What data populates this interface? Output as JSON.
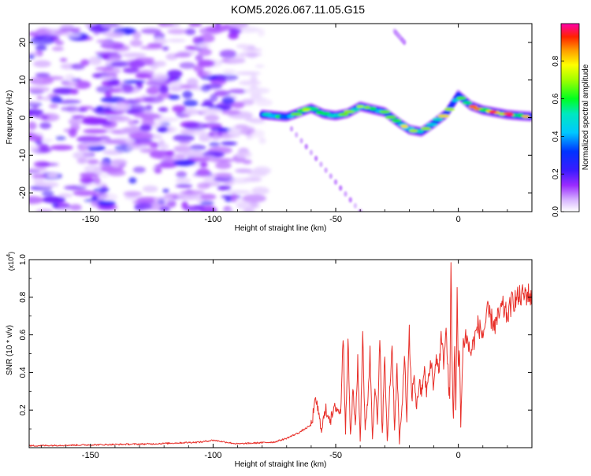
{
  "figure_title": "KOM5.2026.067.11.05.G15",
  "chart_data": [
    {
      "type": "heatmap",
      "title": "KOM5.2026.067.11.05.G15",
      "xlabel": "Height of straight line (km)",
      "ylabel": "Frequency (Hz)",
      "xlim": [
        -175,
        30
      ],
      "ylim": [
        -25,
        25
      ],
      "x_ticks": [
        -150,
        -100,
        -50,
        0
      ],
      "y_ticks": [
        -20,
        -10,
        0,
        10,
        20
      ],
      "colorbar": {
        "label": "Normalized spectral amplitude",
        "range": [
          0,
          1
        ],
        "ticks": [
          0.0,
          0.2,
          0.4,
          0.6,
          0.8
        ],
        "tick_labels": [
          "0.0",
          "0.2",
          "0.4",
          "0.6",
          "0.8"
        ]
      },
      "ridge_centerline": {
        "x": [
          -80,
          -70,
          -60,
          -55,
          -50,
          -45,
          -40,
          -35,
          -30,
          -25,
          -20,
          -15,
          -10,
          -5,
          -2,
          0,
          5,
          10,
          15,
          20,
          25,
          30
        ],
        "y": [
          0.8,
          0.2,
          2.5,
          1.0,
          0.5,
          1.2,
          3.0,
          2.2,
          1.5,
          -1.0,
          -3.2,
          -3.8,
          -1.5,
          1.0,
          4.0,
          6.0,
          3.2,
          2.0,
          1.4,
          0.8,
          0.5,
          0.3
        ]
      },
      "secondary_lines": [
        {
          "x": [
            -68,
            -40
          ],
          "y": [
            -3,
            -25
          ]
        },
        {
          "x": [
            -26,
            -22
          ],
          "y": [
            23,
            20
          ]
        }
      ]
    },
    {
      "type": "line",
      "xlabel": "Height of straight line (km)",
      "ylabel": "SNR (10 * v/v)",
      "scale_label": "(x10",
      "scale_exponent": "4",
      "scale_suffix": ")",
      "xlim": [
        -175,
        30
      ],
      "ylim": [
        0,
        1.0
      ],
      "x_ticks": [
        -150,
        -100,
        -50,
        0
      ],
      "y_ticks": [
        0.2,
        0.4,
        0.6,
        0.8,
        1.0
      ],
      "y_tick_labels": [
        "0.2",
        "0.4",
        "0.6",
        "0.8",
        "1.0"
      ],
      "series": [
        {
          "name": "SNR",
          "color": "#e8302a",
          "x": [
            -175,
            -150,
            -125,
            -105,
            -100,
            -90,
            -75,
            -70,
            -65,
            -60,
            -58,
            -56,
            -54,
            -52,
            -50,
            -48,
            -47,
            -46,
            -45,
            -44,
            -43,
            -42,
            -41,
            -40,
            -39,
            -38,
            -37,
            -36,
            -35,
            -34,
            -33,
            -32,
            -31,
            -30,
            -29,
            -28,
            -27,
            -26,
            -25,
            -24,
            -23,
            -22,
            -21,
            -20,
            -19,
            -18,
            -17,
            -16,
            -15,
            -14,
            -13,
            -12,
            -11,
            -10,
            -9,
            -8,
            -7,
            -6,
            -5,
            -4,
            -3.5,
            -3,
            -2.5,
            -2,
            -1.5,
            -1,
            -0.5,
            0,
            0.5,
            1,
            2,
            3,
            5,
            8,
            10,
            12,
            15,
            18,
            20,
            22,
            25,
            28,
            30
          ],
          "values": [
            0.01,
            0.015,
            0.02,
            0.03,
            0.04,
            0.02,
            0.03,
            0.05,
            0.08,
            0.12,
            0.26,
            0.1,
            0.2,
            0.15,
            0.22,
            0.18,
            0.6,
            0.1,
            0.58,
            0.05,
            0.3,
            0.12,
            0.45,
            0.03,
            0.62,
            0.08,
            0.25,
            0.5,
            0.05,
            0.35,
            0.12,
            0.55,
            0.08,
            0.48,
            0.02,
            0.3,
            0.55,
            0.1,
            0.42,
            0.03,
            0.2,
            0.5,
            0.15,
            0.6,
            0.25,
            0.4,
            0.2,
            0.35,
            0.28,
            0.42,
            0.3,
            0.38,
            0.45,
            0.32,
            0.5,
            0.4,
            0.58,
            0.46,
            0.62,
            0.35,
            0.25,
            1.0,
            0.4,
            0.15,
            0.55,
            0.2,
            0.8,
            0.42,
            0.5,
            0.14,
            0.55,
            0.6,
            0.5,
            0.65,
            0.6,
            0.72,
            0.65,
            0.75,
            0.7,
            0.78,
            0.8,
            0.82,
            0.8
          ]
        }
      ]
    }
  ]
}
